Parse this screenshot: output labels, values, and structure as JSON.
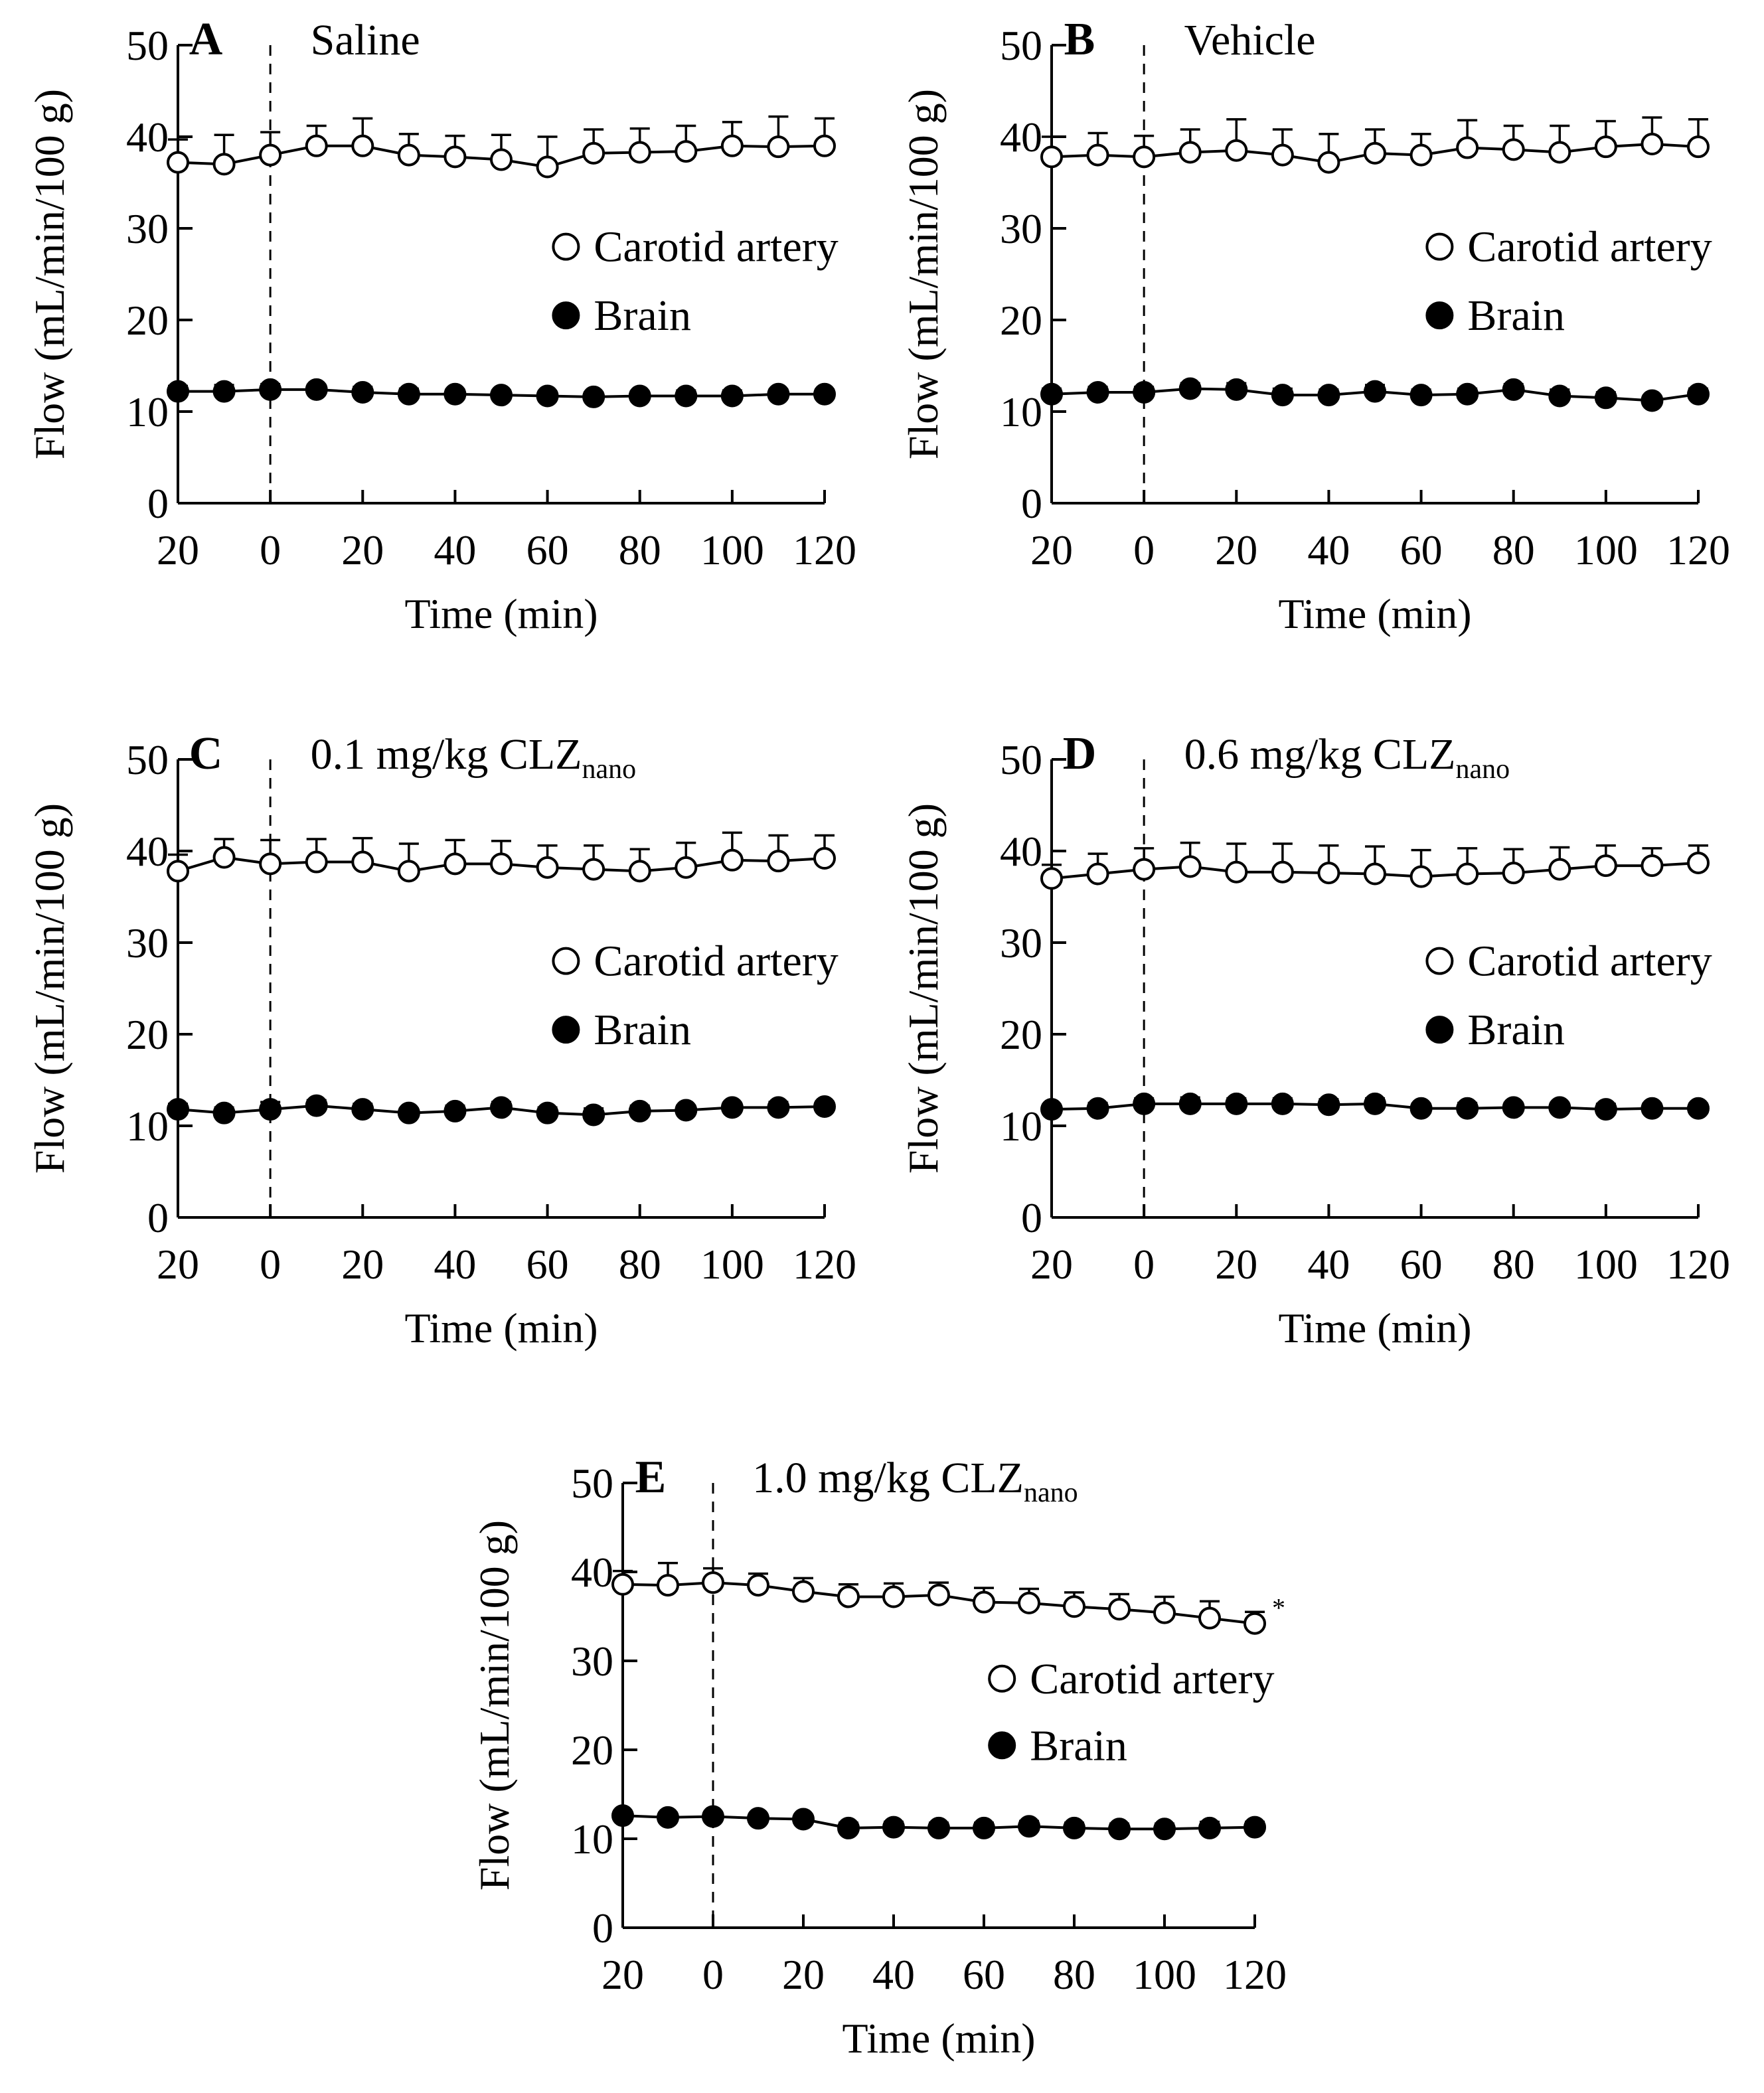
{
  "chart_data": [
    {
      "type": "line",
      "panel": "A",
      "title": "Saline",
      "title_subscript": "",
      "xlabel": "Time (min)",
      "ylabel": "Flow (mL/min/100 g)",
      "xlim": [
        -20,
        120
      ],
      "ylim": [
        0,
        50
      ],
      "x_ticks": [
        -20,
        0,
        20,
        40,
        60,
        80,
        100,
        120
      ],
      "x_tick_labels": [
        "20",
        "0",
        "20",
        "40",
        "60",
        "80",
        "100",
        "120"
      ],
      "y_ticks": [
        0,
        10,
        20,
        30,
        40,
        50
      ],
      "y_tick_labels": [
        "0",
        "10",
        "20",
        "30",
        "40",
        "50"
      ],
      "x": [
        -20,
        -10,
        0,
        10,
        20,
        30,
        40,
        50,
        60,
        70,
        80,
        90,
        100,
        110,
        120
      ],
      "dashed_line_x": 0,
      "legend": [
        "Carotid artery",
        "Brain"
      ],
      "series": [
        {
          "name": "Carotid artery",
          "marker": "open-circle",
          "values": [
            37.2,
            37.0,
            38.0,
            39.0,
            39.0,
            38.0,
            37.8,
            37.5,
            36.7,
            38.2,
            38.3,
            38.4,
            39.0,
            38.9,
            39.0
          ],
          "error": [
            2.5,
            3.2,
            2.5,
            2.2,
            3.0,
            2.3,
            2.3,
            2.7,
            3.3,
            2.6,
            2.6,
            2.8,
            2.6,
            3.3,
            3.0
          ]
        },
        {
          "name": "Brain",
          "marker": "filled-circle",
          "values": [
            12.2,
            12.2,
            12.4,
            12.4,
            12.1,
            11.9,
            11.9,
            11.8,
            11.7,
            11.6,
            11.7,
            11.7,
            11.7,
            11.9,
            11.9
          ],
          "error": [
            0.6,
            0.7,
            0.6,
            0.5,
            0.6,
            0.6,
            0.5,
            0.5,
            0.5,
            0.5,
            0.5,
            0.6,
            0.6,
            0.5,
            0.5
          ]
        }
      ]
    },
    {
      "type": "line",
      "panel": "B",
      "title": "Vehicle",
      "title_subscript": "",
      "xlabel": "Time (min)",
      "ylabel": "Flow (mL/min/100 g)",
      "xlim": [
        -20,
        120
      ],
      "ylim": [
        0,
        50
      ],
      "x_ticks": [
        -20,
        0,
        20,
        40,
        60,
        80,
        100,
        120
      ],
      "x_tick_labels": [
        "20",
        "0",
        "20",
        "40",
        "60",
        "80",
        "100",
        "120"
      ],
      "y_ticks": [
        0,
        10,
        20,
        30,
        40,
        50
      ],
      "y_tick_labels": [
        "0",
        "10",
        "20",
        "30",
        "40",
        "50"
      ],
      "x": [
        -20,
        -10,
        0,
        10,
        20,
        30,
        40,
        50,
        60,
        70,
        80,
        90,
        100,
        110,
        120
      ],
      "dashed_line_x": 0,
      "legend": [
        "Carotid artery",
        "Brain"
      ],
      "series": [
        {
          "name": "Carotid artery",
          "marker": "open-circle",
          "values": [
            37.8,
            38.0,
            37.8,
            38.3,
            38.5,
            38.0,
            37.2,
            38.2,
            38.0,
            38.8,
            38.6,
            38.3,
            38.9,
            39.2,
            38.9
          ],
          "error": [
            2.2,
            2.4,
            2.3,
            2.5,
            3.4,
            2.8,
            3.1,
            2.6,
            2.3,
            3.0,
            2.6,
            2.9,
            2.8,
            2.9,
            3.0
          ]
        },
        {
          "name": "Brain",
          "marker": "filled-circle",
          "values": [
            11.9,
            12.1,
            12.1,
            12.5,
            12.4,
            11.8,
            11.8,
            12.2,
            11.8,
            11.9,
            12.4,
            11.7,
            11.5,
            11.2,
            11.9
          ],
          "error": [
            0.6,
            0.6,
            0.6,
            0.6,
            0.7,
            0.7,
            0.6,
            0.7,
            0.6,
            0.6,
            0.6,
            0.7,
            0.6,
            0.5,
            0.6
          ]
        }
      ]
    },
    {
      "type": "line",
      "panel": "C",
      "title": "0.1 mg/kg CLZ",
      "title_subscript": "nano",
      "xlabel": "Time (min)",
      "ylabel": "Flow (mL/min/100 g)",
      "xlim": [
        -20,
        120
      ],
      "ylim": [
        0,
        50
      ],
      "x_ticks": [
        -20,
        0,
        20,
        40,
        60,
        80,
        100,
        120
      ],
      "x_tick_labels": [
        "20",
        "0",
        "20",
        "40",
        "60",
        "80",
        "100",
        "120"
      ],
      "y_ticks": [
        0,
        10,
        20,
        30,
        40,
        50
      ],
      "y_tick_labels": [
        "0",
        "10",
        "20",
        "30",
        "40",
        "50"
      ],
      "x": [
        -20,
        -10,
        0,
        10,
        20,
        30,
        40,
        50,
        60,
        70,
        80,
        90,
        100,
        110,
        120
      ],
      "dashed_line_x": 0,
      "legend": [
        "Carotid artery",
        "Brain"
      ],
      "series": [
        {
          "name": "Carotid artery",
          "marker": "open-circle",
          "values": [
            37.8,
            39.3,
            38.6,
            38.8,
            38.8,
            37.8,
            38.6,
            38.6,
            38.2,
            38.0,
            37.8,
            38.2,
            39.0,
            38.9,
            39.2
          ],
          "error": [
            1.8,
            2.0,
            2.6,
            2.5,
            2.6,
            3.0,
            2.6,
            2.5,
            2.4,
            2.6,
            2.4,
            2.7,
            3.0,
            2.8,
            2.5
          ]
        },
        {
          "name": "Brain",
          "marker": "filled-circle",
          "values": [
            11.8,
            11.4,
            11.8,
            12.2,
            11.8,
            11.4,
            11.6,
            12.0,
            11.4,
            11.2,
            11.6,
            11.7,
            12.0,
            12.0,
            12.1
          ],
          "error": [
            0.6,
            0.6,
            0.8,
            0.6,
            0.6,
            0.5,
            0.6,
            0.6,
            0.6,
            0.7,
            0.6,
            0.5,
            0.5,
            0.6,
            0.5
          ]
        }
      ]
    },
    {
      "type": "line",
      "panel": "D",
      "title": "0.6 mg/kg CLZ",
      "title_subscript": "nano",
      "xlabel": "Time (min)",
      "ylabel": "Flow (mL/min/100 g)",
      "xlim": [
        -20,
        120
      ],
      "ylim": [
        0,
        50
      ],
      "x_ticks": [
        -20,
        0,
        20,
        40,
        60,
        80,
        100,
        120
      ],
      "x_tick_labels": [
        "20",
        "0",
        "20",
        "40",
        "60",
        "80",
        "100",
        "120"
      ],
      "y_ticks": [
        0,
        10,
        20,
        30,
        40,
        50
      ],
      "y_tick_labels": [
        "0",
        "10",
        "20",
        "30",
        "40",
        "50"
      ],
      "x": [
        -20,
        -10,
        0,
        10,
        20,
        30,
        40,
        50,
        60,
        70,
        80,
        90,
        100,
        110,
        120
      ],
      "dashed_line_x": 0,
      "legend": [
        "Carotid artery",
        "Brain"
      ],
      "series": [
        {
          "name": "Carotid artery",
          "marker": "open-circle",
          "values": [
            37.0,
            37.5,
            38.0,
            38.3,
            37.7,
            37.7,
            37.6,
            37.5,
            37.2,
            37.5,
            37.6,
            38.0,
            38.4,
            38.4,
            38.7
          ],
          "error": [
            1.5,
            2.2,
            2.3,
            2.6,
            3.1,
            3.1,
            3.0,
            3.0,
            2.9,
            2.8,
            2.6,
            2.4,
            2.2,
            1.9,
            1.9
          ]
        },
        {
          "name": "Brain",
          "marker": "filled-circle",
          "values": [
            11.8,
            11.9,
            12.4,
            12.4,
            12.4,
            12.4,
            12.3,
            12.4,
            11.9,
            11.9,
            12.0,
            12.0,
            11.8,
            11.9,
            11.9
          ],
          "error": [
            0.5,
            0.6,
            0.6,
            0.7,
            0.6,
            0.6,
            0.6,
            0.6,
            0.5,
            0.6,
            0.5,
            0.5,
            0.6,
            0.5,
            0.5
          ]
        }
      ]
    },
    {
      "type": "line",
      "panel": "E",
      "title": "1.0 mg/kg CLZ",
      "title_subscript": "nano",
      "xlabel": "Time (min)",
      "ylabel": "Flow (mL/min/100 g)",
      "xlim": [
        -20,
        120
      ],
      "ylim": [
        0,
        50
      ],
      "x_ticks": [
        -20,
        0,
        20,
        40,
        60,
        80,
        100,
        120
      ],
      "x_tick_labels": [
        "20",
        "0",
        "20",
        "40",
        "60",
        "80",
        "100",
        "120"
      ],
      "y_ticks": [
        0,
        10,
        20,
        30,
        40,
        50
      ],
      "y_tick_labels": [
        "0",
        "10",
        "20",
        "30",
        "40",
        "50"
      ],
      "x": [
        -20,
        -10,
        0,
        10,
        20,
        30,
        40,
        50,
        60,
        70,
        80,
        90,
        100,
        110,
        120
      ],
      "dashed_line_x": 0,
      "legend": [
        "Carotid artery",
        "Brain"
      ],
      "annotation": "*",
      "series": [
        {
          "name": "Carotid artery",
          "marker": "open-circle",
          "values": [
            38.6,
            38.5,
            38.8,
            38.5,
            37.8,
            37.2,
            37.2,
            37.4,
            36.6,
            36.5,
            36.1,
            35.8,
            35.4,
            34.8,
            34.2
          ],
          "error": [
            1.5,
            2.5,
            1.6,
            1.3,
            1.5,
            1.4,
            1.5,
            1.4,
            1.6,
            1.6,
            1.6,
            1.7,
            1.8,
            1.9,
            1.3
          ]
        },
        {
          "name": "Brain",
          "marker": "filled-circle",
          "values": [
            12.6,
            12.4,
            12.5,
            12.3,
            12.2,
            11.2,
            11.3,
            11.2,
            11.2,
            11.4,
            11.2,
            11.1,
            11.1,
            11.2,
            11.3
          ],
          "error": [
            0.5,
            0.5,
            0.5,
            0.5,
            0.5,
            0.6,
            0.6,
            0.6,
            0.6,
            0.6,
            0.6,
            0.6,
            0.6,
            0.7,
            0.6
          ]
        }
      ]
    }
  ]
}
